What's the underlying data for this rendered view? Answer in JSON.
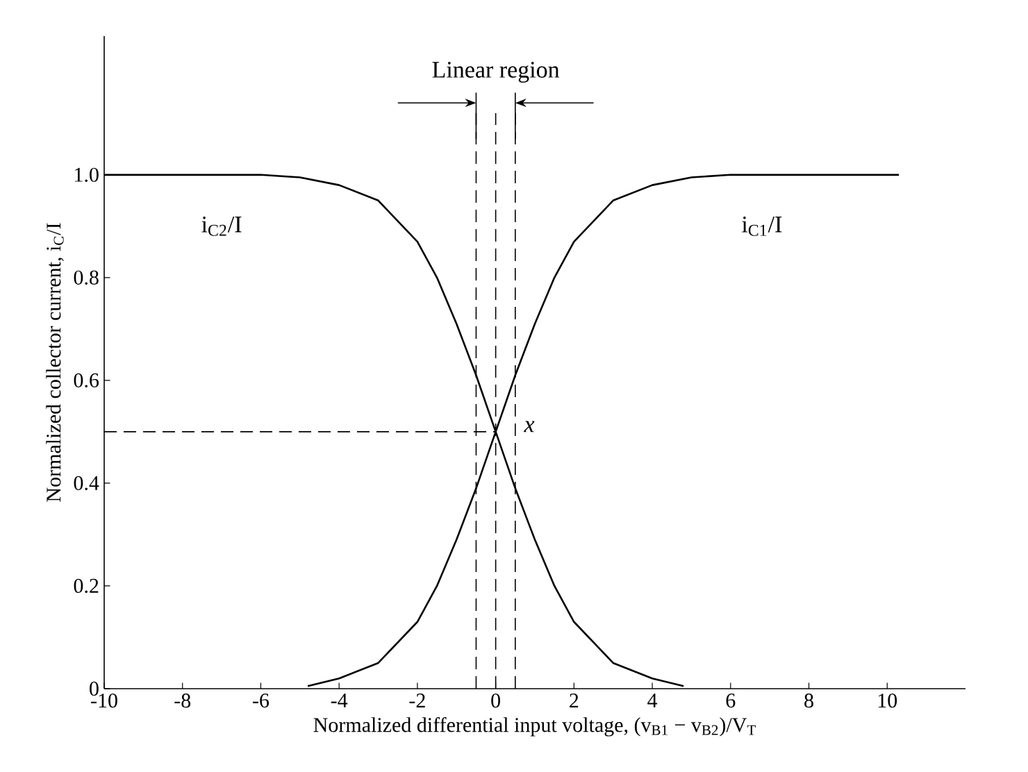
{
  "chart_data": {
    "type": "line",
    "xlabel": "Normalized differential input voltage, (v$_{B1}$ − v$_{B2}$)/V$_{T}$",
    "ylabel": "Normalized collector current, i$_{C}$/I",
    "series": [
      {
        "name": "i$_{C2}$/I",
        "color": "#000000",
        "x": [
          -10,
          -6,
          -5,
          -4,
          -3,
          -2,
          -1.5,
          -1,
          -0.5,
          0,
          0.5,
          1,
          1.5,
          2,
          3,
          4,
          4.8
        ],
        "values": [
          1,
          1,
          0.995,
          0.98,
          0.95,
          0.87,
          0.8,
          0.71,
          0.61,
          0.5,
          0.39,
          0.29,
          0.2,
          0.13,
          0.05,
          0.02,
          0.005
        ]
      },
      {
        "name": "i$_{C1}$/I",
        "color": "#000000",
        "x": [
          -4.8,
          -4,
          -3,
          -2,
          -1.5,
          -1,
          -0.5,
          0,
          0.5,
          1,
          1.5,
          2,
          3,
          4,
          5,
          6,
          10.3
        ],
        "values": [
          0.005,
          0.02,
          0.05,
          0.13,
          0.2,
          0.29,
          0.39,
          0.5,
          0.61,
          0.71,
          0.8,
          0.87,
          0.95,
          0.98,
          0.995,
          1,
          1
        ]
      }
    ],
    "xlim": [
      -10,
      12
    ],
    "ylim": [
      0,
      1.27
    ],
    "xticks": [
      -10,
      -8,
      -6,
      -4,
      -2,
      0,
      2,
      4,
      6,
      8,
      10
    ],
    "yticks": [
      0,
      0.2,
      0.4,
      0.6,
      0.8,
      {
        "value": 1,
        "label": "1.0"
      }
    ],
    "ref_lines": [
      {
        "axis": "x",
        "value": -0.5,
        "line_style": "dashed"
      },
      {
        "axis": "x",
        "value": 0,
        "line_style": "dashed"
      },
      {
        "axis": "x",
        "value": 0.5,
        "line_style": "dashed"
      },
      {
        "axis": "y",
        "value": 0.5,
        "line_style": "dashed"
      }
    ],
    "annotations": [
      {
        "text": "Linear region",
        "x": 0,
        "y": 1.05
      },
      {
        "text": "x",
        "x": 0,
        "y": 0.5
      }
    ],
    "grid": false,
    "legend": false,
    "marker": "none",
    "line_style": "solid"
  }
}
